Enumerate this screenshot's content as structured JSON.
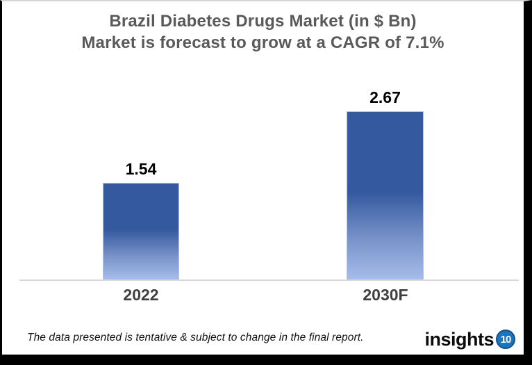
{
  "chart_data": {
    "type": "bar",
    "title_line1": "Brazil Diabetes Drugs Market (in $ Bn)",
    "title_line2": "Market is forecast to grow at a CAGR of 7.1%",
    "categories": [
      "2022",
      "2030F"
    ],
    "values": [
      1.54,
      2.67
    ],
    "value_labels": [
      "1.54",
      "2.67"
    ],
    "ylim": [
      0,
      2.8
    ],
    "grid": false,
    "legend": false,
    "bar_colors": {
      "gradient_top": "#35599F",
      "gradient_mid": "#7D97CC",
      "gradient_bottom": "#A6BCE9",
      "border": "#B3C4EA"
    }
  },
  "colors": {
    "title": "#595959",
    "axis_line": "#D9D9D9",
    "category_label": "#3F3F3F",
    "value_label": "#000000",
    "logo_blue": "#1B75BC"
  },
  "footer": {
    "disclaimer": "The data presented is tentative & subject to change in the final report.",
    "logo_text": "insights",
    "logo_badge": "10"
  }
}
